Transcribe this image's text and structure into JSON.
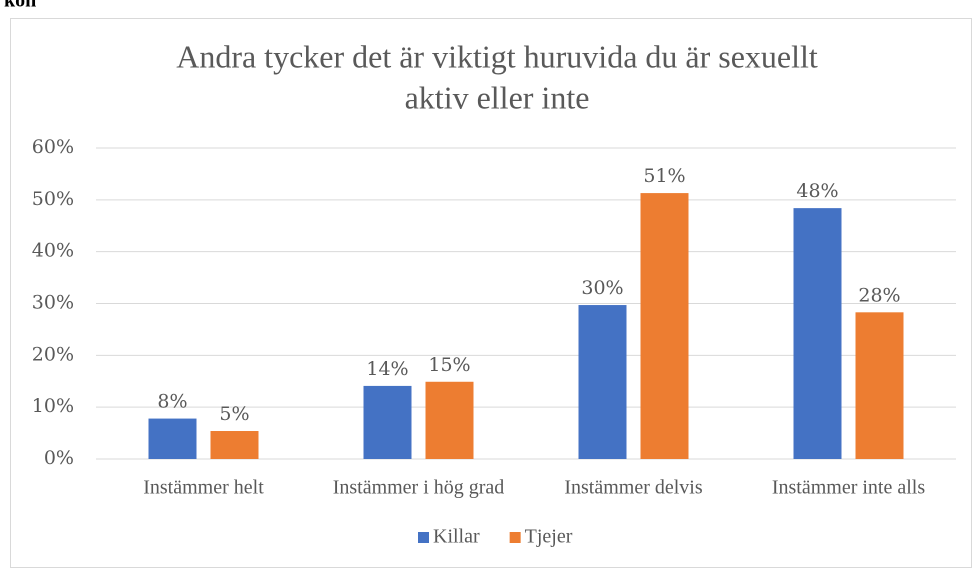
{
  "caption": "kön",
  "chart_data": {
    "type": "bar",
    "title": [
      "Andra tycker det är viktigt huruvida du är sexuellt",
      "aktiv eller inte"
    ],
    "categories": [
      "Instämmer helt",
      "Instämmer i hög grad",
      "Instämmer delvis",
      "Instämmer inte alls"
    ],
    "series": [
      {
        "name": "Killar",
        "color": "#4472c4",
        "values": [
          7.8,
          14.1,
          29.7,
          48.4
        ],
        "value_labels": [
          "8%",
          "14%",
          "30%",
          "48%"
        ]
      },
      {
        "name": "Tjejer",
        "color": "#ed7d31",
        "values": [
          5.4,
          14.9,
          51.3,
          28.3
        ],
        "value_labels": [
          "5%",
          "15%",
          "51%",
          "28%"
        ]
      }
    ],
    "ylim": [
      0,
      60
    ],
    "yticks": [
      {
        "value": 0,
        "label": "0%"
      },
      {
        "value": 10,
        "label": "10%"
      },
      {
        "value": 20,
        "label": "20%"
      },
      {
        "value": 30,
        "label": "30%"
      },
      {
        "value": 40,
        "label": "40%"
      },
      {
        "value": 50,
        "label": "50%"
      },
      {
        "value": 60,
        "label": "60%"
      }
    ],
    "grid": true,
    "legend": "bottom"
  }
}
